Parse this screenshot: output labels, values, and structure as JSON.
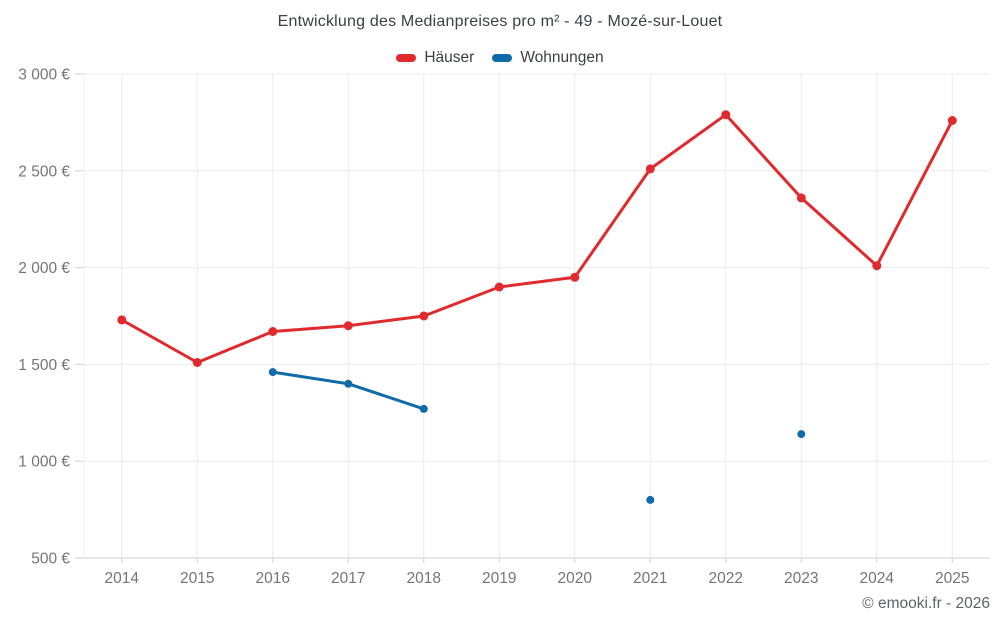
{
  "header": {
    "title": "Entwicklung des Medianpreises pro m² - 49 - Mozé-sur-Louet"
  },
  "footer": {
    "copyright": "© emooki.fr - 2026"
  },
  "colors": {
    "haeuser": "#e02a2d",
    "wohnungen": "#106ba8",
    "grid": "#ececec",
    "axis": "#cfcfcf",
    "axis_text": "#757575"
  },
  "chart_data": {
    "type": "line",
    "title": "Entwicklung des Medianpreises pro m² - 49 - Mozé-sur-Louet",
    "x_labels": [
      "2014",
      "2015",
      "2016",
      "2017",
      "2018",
      "2019",
      "2020",
      "2021",
      "2022",
      "2023",
      "2024",
      "2025"
    ],
    "series": [
      {
        "name": "Häuser",
        "color": "#e02a2d",
        "values": [
          1730,
          1510,
          1670,
          1700,
          1750,
          1900,
          1950,
          2510,
          2790,
          2360,
          2010,
          2760
        ]
      },
      {
        "name": "Wohnungen",
        "color": "#106ba8",
        "values": [
          null,
          null,
          1460,
          1400,
          1270,
          null,
          null,
          800,
          null,
          1140,
          null,
          null
        ]
      }
    ],
    "ylim": [
      500,
      3000
    ],
    "ytick_step": 500,
    "ytick_suffix": " €",
    "grid": true,
    "legend_position": "top",
    "xlabel": "",
    "ylabel": ""
  }
}
